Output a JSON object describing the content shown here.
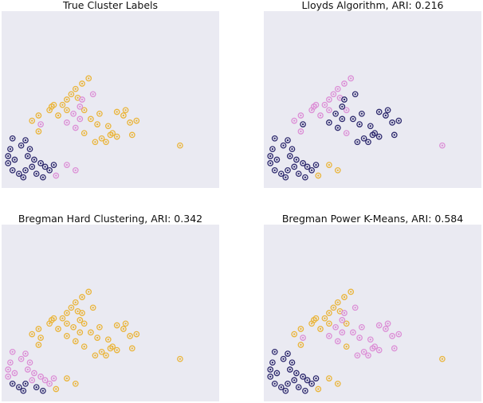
{
  "colors": {
    "plot_background": "#eaeaf2",
    "cluster_0": "#2e2a6e",
    "cluster_1": "#dc8fd6",
    "cluster_2": "#eab53c"
  },
  "chart_data": [
    {
      "type": "scatter",
      "title": "True Cluster Labels",
      "xlabel": "",
      "ylabel": "",
      "xlim": [
        0,
        100
      ],
      "ylim": [
        0,
        100
      ],
      "grid": false,
      "legend": "none",
      "points": [
        [
          82,
          24
        ],
        [
          40,
          62
        ],
        [
          37,
          59
        ],
        [
          34,
          56
        ],
        [
          32,
          53
        ],
        [
          35,
          51
        ],
        [
          30,
          50
        ],
        [
          24,
          47
        ],
        [
          23,
          46
        ],
        [
          22,
          44
        ],
        [
          30,
          44
        ],
        [
          38,
          44
        ],
        [
          26,
          41
        ],
        [
          17,
          41
        ],
        [
          14,
          38
        ],
        [
          28,
          47
        ],
        [
          17,
          32
        ],
        [
          38,
          31
        ],
        [
          30,
          13
        ],
        [
          34,
          10
        ],
        [
          25,
          7
        ],
        [
          43,
          26
        ],
        [
          46,
          28
        ],
        [
          50,
          30
        ],
        [
          51,
          31
        ],
        [
          48,
          26
        ],
        [
          53,
          29
        ],
        [
          49,
          35
        ],
        [
          44,
          36
        ],
        [
          41,
          39
        ],
        [
          53,
          43
        ],
        [
          56,
          41
        ],
        [
          57,
          44
        ],
        [
          59,
          37
        ],
        [
          62,
          38
        ],
        [
          60,
          30
        ],
        [
          45,
          42
        ],
        [
          42,
          53
        ],
        [
          37,
          50
        ],
        [
          36,
          46
        ],
        [
          36,
          39
        ],
        [
          34,
          34
        ],
        [
          30,
          37
        ],
        [
          33,
          42
        ],
        [
          18,
          36
        ],
        [
          4,
          22
        ],
        [
          6,
          16
        ],
        [
          3,
          14
        ],
        [
          5,
          28
        ],
        [
          9,
          24
        ],
        [
          11,
          27
        ],
        [
          13,
          22
        ],
        [
          15,
          16
        ],
        [
          18,
          14
        ],
        [
          20,
          12
        ],
        [
          22,
          10
        ],
        [
          24,
          13
        ],
        [
          8,
          8
        ],
        [
          10,
          6
        ],
        [
          5,
          10
        ],
        [
          3,
          18
        ],
        [
          12,
          18
        ],
        [
          14,
          12
        ],
        [
          16,
          8
        ],
        [
          19,
          6
        ],
        [
          11,
          10
        ]
      ],
      "labels": [
        2,
        2,
        2,
        2,
        2,
        2,
        2,
        2,
        2,
        2,
        2,
        2,
        2,
        2,
        2,
        2,
        2,
        2,
        1,
        1,
        1,
        2,
        2,
        2,
        2,
        2,
        2,
        2,
        2,
        2,
        2,
        2,
        2,
        2,
        2,
        2,
        2,
        1,
        1,
        1,
        1,
        1,
        1,
        1,
        1,
        0,
        0,
        0,
        0,
        0,
        0,
        0,
        0,
        0,
        0,
        0,
        0,
        0,
        0,
        0,
        0,
        0,
        0,
        0,
        0,
        0
      ]
    },
    {
      "type": "scatter",
      "title": "Lloyds Algorithm, ARI: 0.216",
      "xlabel": "",
      "ylabel": "",
      "xlim": [
        0,
        100
      ],
      "ylim": [
        0,
        100
      ],
      "grid": false,
      "legend": "none",
      "points": [
        [
          82,
          24
        ],
        [
          40,
          62
        ],
        [
          37,
          59
        ],
        [
          34,
          56
        ],
        [
          32,
          53
        ],
        [
          35,
          51
        ],
        [
          30,
          50
        ],
        [
          24,
          47
        ],
        [
          23,
          46
        ],
        [
          22,
          44
        ],
        [
          30,
          44
        ],
        [
          38,
          44
        ],
        [
          26,
          41
        ],
        [
          17,
          41
        ],
        [
          14,
          38
        ],
        [
          28,
          47
        ],
        [
          17,
          32
        ],
        [
          38,
          31
        ],
        [
          30,
          13
        ],
        [
          34,
          10
        ],
        [
          25,
          7
        ],
        [
          43,
          26
        ],
        [
          46,
          28
        ],
        [
          50,
          30
        ],
        [
          51,
          31
        ],
        [
          48,
          26
        ],
        [
          53,
          29
        ],
        [
          49,
          35
        ],
        [
          44,
          36
        ],
        [
          41,
          39
        ],
        [
          53,
          43
        ],
        [
          56,
          41
        ],
        [
          57,
          44
        ],
        [
          59,
          37
        ],
        [
          62,
          38
        ],
        [
          60,
          30
        ],
        [
          45,
          42
        ],
        [
          42,
          53
        ],
        [
          37,
          50
        ],
        [
          36,
          46
        ],
        [
          36,
          39
        ],
        [
          34,
          34
        ],
        [
          30,
          37
        ],
        [
          33,
          42
        ],
        [
          18,
          36
        ],
        [
          4,
          22
        ],
        [
          6,
          16
        ],
        [
          3,
          14
        ],
        [
          5,
          28
        ],
        [
          9,
          24
        ],
        [
          11,
          27
        ],
        [
          13,
          22
        ],
        [
          15,
          16
        ],
        [
          18,
          14
        ],
        [
          20,
          12
        ],
        [
          22,
          10
        ],
        [
          24,
          13
        ],
        [
          8,
          8
        ],
        [
          10,
          6
        ],
        [
          5,
          10
        ],
        [
          3,
          18
        ],
        [
          12,
          18
        ],
        [
          14,
          12
        ],
        [
          16,
          8
        ],
        [
          19,
          6
        ],
        [
          11,
          10
        ]
      ],
      "labels": [
        1,
        1,
        1,
        1,
        1,
        1,
        1,
        1,
        1,
        1,
        1,
        1,
        1,
        1,
        1,
        1,
        1,
        1,
        2,
        2,
        2,
        0,
        0,
        0,
        0,
        0,
        0,
        0,
        0,
        0,
        0,
        0,
        0,
        0,
        0,
        0,
        0,
        0,
        0,
        0,
        0,
        0,
        0,
        0,
        0,
        0,
        0,
        0,
        0,
        0,
        0,
        0,
        0,
        0,
        0,
        0,
        0,
        0,
        0,
        0,
        0,
        0,
        0,
        0,
        0,
        0
      ]
    },
    {
      "type": "scatter",
      "title": "Bregman Hard Clustering, ARI: 0.342",
      "xlabel": "",
      "ylabel": "",
      "xlim": [
        0,
        100
      ],
      "ylim": [
        0,
        100
      ],
      "grid": false,
      "legend": "none",
      "points": [
        [
          82,
          24
        ],
        [
          40,
          62
        ],
        [
          37,
          59
        ],
        [
          34,
          56
        ],
        [
          32,
          53
        ],
        [
          35,
          51
        ],
        [
          30,
          50
        ],
        [
          24,
          47
        ],
        [
          23,
          46
        ],
        [
          22,
          44
        ],
        [
          30,
          44
        ],
        [
          38,
          44
        ],
        [
          26,
          41
        ],
        [
          17,
          41
        ],
        [
          14,
          38
        ],
        [
          28,
          47
        ],
        [
          17,
          32
        ],
        [
          38,
          31
        ],
        [
          30,
          13
        ],
        [
          34,
          10
        ],
        [
          25,
          7
        ],
        [
          43,
          26
        ],
        [
          46,
          28
        ],
        [
          50,
          30
        ],
        [
          51,
          31
        ],
        [
          48,
          26
        ],
        [
          53,
          29
        ],
        [
          49,
          35
        ],
        [
          44,
          36
        ],
        [
          41,
          39
        ],
        [
          53,
          43
        ],
        [
          56,
          41
        ],
        [
          57,
          44
        ],
        [
          59,
          37
        ],
        [
          62,
          38
        ],
        [
          60,
          30
        ],
        [
          45,
          42
        ],
        [
          42,
          53
        ],
        [
          37,
          50
        ],
        [
          36,
          46
        ],
        [
          36,
          39
        ],
        [
          34,
          34
        ],
        [
          30,
          37
        ],
        [
          33,
          42
        ],
        [
          18,
          36
        ],
        [
          4,
          22
        ],
        [
          6,
          16
        ],
        [
          3,
          14
        ],
        [
          5,
          28
        ],
        [
          9,
          24
        ],
        [
          11,
          27
        ],
        [
          13,
          22
        ],
        [
          15,
          16
        ],
        [
          18,
          14
        ],
        [
          20,
          12
        ],
        [
          22,
          10
        ],
        [
          24,
          13
        ],
        [
          8,
          8
        ],
        [
          10,
          6
        ],
        [
          5,
          10
        ],
        [
          3,
          18
        ],
        [
          12,
          18
        ],
        [
          14,
          12
        ],
        [
          16,
          8
        ],
        [
          19,
          6
        ],
        [
          11,
          10
        ]
      ],
      "labels": [
        2,
        2,
        2,
        2,
        2,
        2,
        2,
        2,
        2,
        2,
        2,
        2,
        2,
        2,
        2,
        2,
        2,
        2,
        2,
        2,
        2,
        2,
        2,
        2,
        2,
        2,
        2,
        2,
        2,
        2,
        2,
        2,
        2,
        2,
        2,
        2,
        2,
        2,
        2,
        2,
        2,
        2,
        2,
        2,
        2,
        1,
        1,
        1,
        1,
        1,
        1,
        1,
        1,
        1,
        1,
        1,
        1,
        0,
        0,
        0,
        1,
        1,
        1,
        0,
        0,
        0
      ]
    },
    {
      "type": "scatter",
      "title": "Bregman Power K-Means, ARI: 0.584",
      "xlabel": "",
      "ylabel": "",
      "xlim": [
        0,
        100
      ],
      "ylim": [
        0,
        100
      ],
      "grid": false,
      "legend": "none",
      "points": [
        [
          82,
          24
        ],
        [
          40,
          62
        ],
        [
          37,
          59
        ],
        [
          34,
          56
        ],
        [
          32,
          53
        ],
        [
          35,
          51
        ],
        [
          30,
          50
        ],
        [
          24,
          47
        ],
        [
          23,
          46
        ],
        [
          22,
          44
        ],
        [
          30,
          44
        ],
        [
          38,
          44
        ],
        [
          26,
          41
        ],
        [
          17,
          41
        ],
        [
          14,
          38
        ],
        [
          28,
          47
        ],
        [
          17,
          32
        ],
        [
          38,
          31
        ],
        [
          30,
          13
        ],
        [
          34,
          10
        ],
        [
          25,
          7
        ],
        [
          43,
          26
        ],
        [
          46,
          28
        ],
        [
          50,
          30
        ],
        [
          51,
          31
        ],
        [
          48,
          26
        ],
        [
          53,
          29
        ],
        [
          49,
          35
        ],
        [
          44,
          36
        ],
        [
          41,
          39
        ],
        [
          53,
          43
        ],
        [
          56,
          41
        ],
        [
          57,
          44
        ],
        [
          59,
          37
        ],
        [
          62,
          38
        ],
        [
          60,
          30
        ],
        [
          45,
          42
        ],
        [
          42,
          53
        ],
        [
          37,
          50
        ],
        [
          36,
          46
        ],
        [
          36,
          39
        ],
        [
          34,
          34
        ],
        [
          30,
          37
        ],
        [
          33,
          42
        ],
        [
          18,
          36
        ],
        [
          4,
          22
        ],
        [
          6,
          16
        ],
        [
          3,
          14
        ],
        [
          5,
          28
        ],
        [
          9,
          24
        ],
        [
          11,
          27
        ],
        [
          13,
          22
        ],
        [
          15,
          16
        ],
        [
          18,
          14
        ],
        [
          20,
          12
        ],
        [
          22,
          10
        ],
        [
          24,
          13
        ],
        [
          8,
          8
        ],
        [
          10,
          6
        ],
        [
          5,
          10
        ],
        [
          3,
          18
        ],
        [
          12,
          18
        ],
        [
          14,
          12
        ],
        [
          16,
          8
        ],
        [
          19,
          6
        ],
        [
          11,
          10
        ]
      ],
      "labels": [
        2,
        2,
        2,
        2,
        2,
        2,
        2,
        2,
        2,
        2,
        2,
        2,
        2,
        2,
        2,
        2,
        2,
        2,
        2,
        2,
        2,
        1,
        1,
        1,
        1,
        1,
        1,
        1,
        1,
        1,
        1,
        1,
        1,
        1,
        1,
        1,
        1,
        1,
        1,
        1,
        1,
        1,
        1,
        1,
        1,
        0,
        0,
        0,
        0,
        0,
        0,
        0,
        0,
        0,
        0,
        0,
        0,
        0,
        0,
        0,
        0,
        0,
        0,
        0,
        0,
        0
      ]
    }
  ]
}
